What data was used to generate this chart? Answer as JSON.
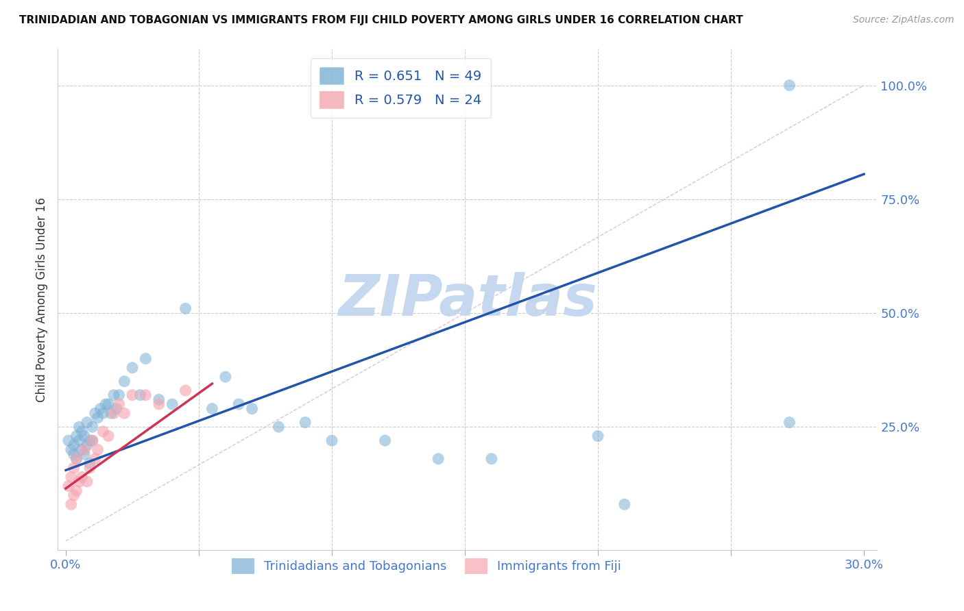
{
  "title": "TRINIDADIAN AND TOBAGONIAN VS IMMIGRANTS FROM FIJI CHILD POVERTY AMONG GIRLS UNDER 16 CORRELATION CHART",
  "source": "Source: ZipAtlas.com",
  "ylabel": "Child Poverty Among Girls Under 16",
  "xlim": [
    0.0,
    0.3
  ],
  "ylim": [
    0.0,
    1.05
  ],
  "blue_R": 0.651,
  "blue_N": 49,
  "pink_R": 0.579,
  "pink_N": 24,
  "blue_color": "#7BAFD4",
  "pink_color": "#F4A7B0",
  "blue_line_color": "#2255AA",
  "pink_line_color": "#CC3355",
  "diag_line_color": "#DDBBCC",
  "watermark": "ZIPatlas",
  "watermark_color": "#C5D8F0",
  "legend_color": "#2255AA",
  "background_color": "#FFFFFF",
  "blue_line_x0": 0.0,
  "blue_line_y0": 0.155,
  "blue_line_x1": 0.3,
  "blue_line_y1": 0.805,
  "pink_line_x0": 0.0,
  "pink_line_y0": 0.115,
  "pink_line_x1": 0.055,
  "pink_line_y1": 0.345,
  "blue_x": [
    0.001,
    0.002,
    0.003,
    0.003,
    0.004,
    0.004,
    0.005,
    0.005,
    0.006,
    0.006,
    0.007,
    0.007,
    0.008,
    0.008,
    0.009,
    0.009,
    0.01,
    0.01,
    0.011,
    0.012,
    0.013,
    0.014,
    0.015,
    0.016,
    0.017,
    0.018,
    0.019,
    0.02,
    0.022,
    0.025,
    0.028,
    0.03,
    0.035,
    0.04,
    0.045,
    0.055,
    0.06,
    0.065,
    0.07,
    0.08,
    0.09,
    0.1,
    0.12,
    0.14,
    0.16,
    0.2,
    0.21,
    0.272,
    0.272
  ],
  "blue_y": [
    0.22,
    0.2,
    0.19,
    0.21,
    0.23,
    0.18,
    0.22,
    0.25,
    0.2,
    0.24,
    0.19,
    0.23,
    0.21,
    0.26,
    0.22,
    0.17,
    0.22,
    0.25,
    0.28,
    0.27,
    0.29,
    0.28,
    0.3,
    0.3,
    0.28,
    0.32,
    0.29,
    0.32,
    0.35,
    0.38,
    0.32,
    0.4,
    0.31,
    0.3,
    0.51,
    0.29,
    0.36,
    0.3,
    0.29,
    0.25,
    0.26,
    0.22,
    0.22,
    0.18,
    0.18,
    0.23,
    0.08,
    0.26,
    1.0
  ],
  "pink_x": [
    0.001,
    0.002,
    0.002,
    0.003,
    0.003,
    0.004,
    0.004,
    0.005,
    0.006,
    0.007,
    0.008,
    0.009,
    0.01,
    0.011,
    0.012,
    0.014,
    0.016,
    0.018,
    0.02,
    0.022,
    0.025,
    0.03,
    0.035,
    0.045
  ],
  "pink_y": [
    0.12,
    0.08,
    0.14,
    0.1,
    0.16,
    0.11,
    0.18,
    0.13,
    0.14,
    0.2,
    0.13,
    0.16,
    0.22,
    0.18,
    0.2,
    0.24,
    0.23,
    0.28,
    0.3,
    0.28,
    0.32,
    0.32,
    0.3,
    0.33
  ]
}
